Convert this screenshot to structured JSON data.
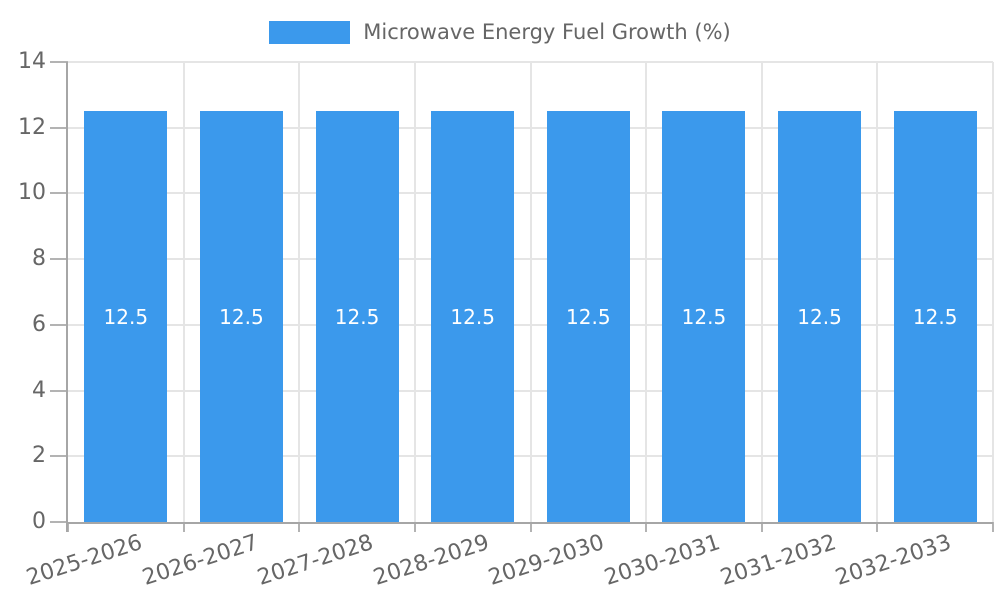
{
  "chart_data": {
    "type": "bar",
    "title": "Microwave Energy Fuel Growth (%)",
    "categories": [
      "2025-2026",
      "2026-2027",
      "2027-2028",
      "2028-2029",
      "2029-2030",
      "2030-2031",
      "2031-2032",
      "2032-2033"
    ],
    "series": [
      {
        "name": "Microwave Energy Fuel Growth (%)",
        "values": [
          12.5,
          12.5,
          12.5,
          12.5,
          12.5,
          12.5,
          12.5,
          12.5
        ]
      }
    ],
    "value_labels": [
      "12.5",
      "12.5",
      "12.5",
      "12.5",
      "12.5",
      "12.5",
      "12.5",
      "12.5"
    ],
    "xlabel": "",
    "ylabel": "",
    "ylim": [
      0,
      14
    ],
    "ytick_step": 2,
    "ytick_labels": [
      "0",
      "2",
      "4",
      "6",
      "8",
      "10",
      "12",
      "14"
    ],
    "grid": true,
    "legend_position": "top",
    "x_label_rotation_deg": -18,
    "colors": {
      "bar": "#3B99EC",
      "grid": "#E5E5E5",
      "axis": "#A6A6A6",
      "tick": "#B3B3B3",
      "tick_label": "#666666",
      "legend_text": "#666666",
      "value_label": "#FFFFFF",
      "background": "#FFFFFF"
    }
  }
}
